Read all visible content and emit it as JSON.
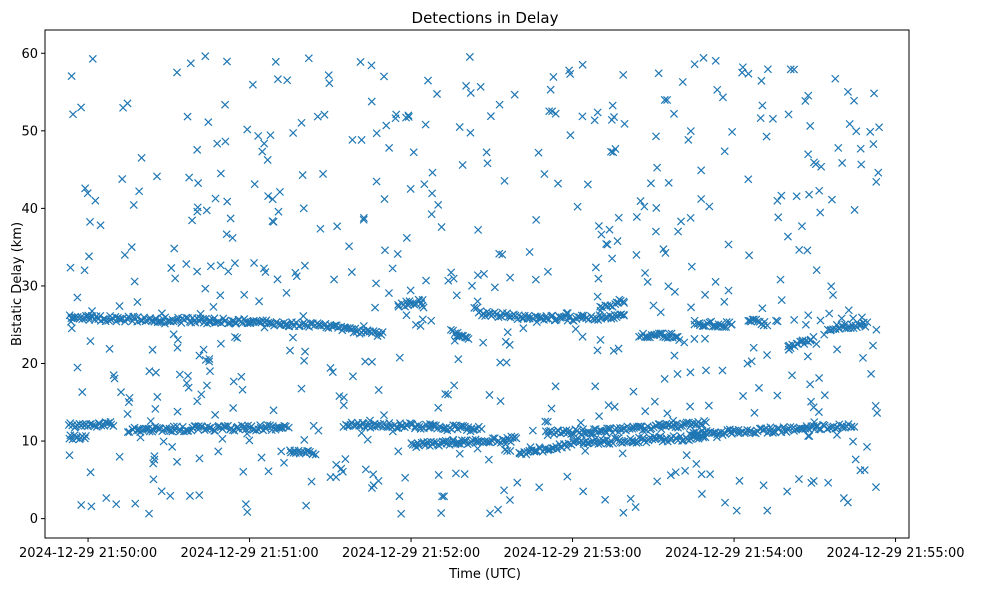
{
  "chart_data": {
    "type": "scatter",
    "title": "Detections in Delay",
    "xlabel": "Time (UTC)",
    "ylabel": "Bistatic Delay (km)",
    "x_ticks": [
      {
        "time": "21:50:00",
        "label": "2024-12-29 21:50:00"
      },
      {
        "time": "21:51:00",
        "label": "2024-12-29 21:51:00"
      },
      {
        "time": "21:52:00",
        "label": "2024-12-29 21:52:00"
      },
      {
        "time": "21:53:00",
        "label": "2024-12-29 21:53:00"
      },
      {
        "time": "21:54:00",
        "label": "2024-12-29 21:54:00"
      },
      {
        "time": "21:55:00",
        "label": "2024-12-29 21:55:00"
      }
    ],
    "xlim": [
      "21:49:44",
      "21:55:05"
    ],
    "y_ticks": [
      "0",
      "10",
      "20",
      "30",
      "40",
      "50",
      "60"
    ],
    "ylim": [
      -2.5,
      63
    ],
    "marker": "x",
    "color": "#1f77b4",
    "grid": false,
    "tracks": [
      {
        "points": [
          [
            "21:49:53",
            25.9
          ],
          [
            "21:50:30",
            25.6
          ],
          [
            "21:51:00",
            25.4
          ],
          [
            "21:51:30",
            24.8
          ],
          [
            "21:51:50",
            23.7
          ]
        ]
      },
      {
        "points": [
          [
            "21:51:55",
            27.5
          ],
          [
            "21:52:05",
            28.2
          ]
        ]
      },
      {
        "points": [
          [
            "21:52:15",
            24.0
          ],
          [
            "21:52:22",
            23.3
          ]
        ]
      },
      {
        "points": [
          [
            "21:52:25",
            26.5
          ],
          [
            "21:52:40",
            26.0
          ],
          [
            "21:53:00",
            25.8
          ],
          [
            "21:53:20",
            26.1
          ]
        ]
      },
      {
        "points": [
          [
            "21:53:10",
            27.0
          ],
          [
            "21:53:20",
            28.2
          ]
        ]
      },
      {
        "points": [
          [
            "21:53:25",
            23.5
          ],
          [
            "21:53:40",
            23.7
          ]
        ]
      },
      {
        "points": [
          [
            "21:53:45",
            25.2
          ],
          [
            "21:54:00",
            25.0
          ]
        ]
      },
      {
        "points": [
          [
            "21:54:05",
            25.6
          ],
          [
            "21:54:12",
            25.0
          ]
        ]
      },
      {
        "points": [
          [
            "21:54:20",
            22.0
          ],
          [
            "21:54:30",
            23.2
          ]
        ]
      },
      {
        "points": [
          [
            "21:54:35",
            24.6
          ],
          [
            "21:54:50",
            25.1
          ]
        ]
      },
      {
        "points": [
          [
            "21:49:53",
            12.0
          ],
          [
            "21:50:10",
            12.2
          ]
        ]
      },
      {
        "points": [
          [
            "21:50:15",
            11.5
          ],
          [
            "21:50:45",
            11.6
          ],
          [
            "21:51:15",
            11.8
          ]
        ]
      },
      {
        "points": [
          [
            "21:51:15",
            8.5
          ],
          [
            "21:51:25",
            8.4
          ]
        ]
      },
      {
        "points": [
          [
            "21:51:35",
            12.1
          ],
          [
            "21:52:00",
            12.0
          ],
          [
            "21:52:25",
            11.5
          ]
        ]
      },
      {
        "points": [
          [
            "21:52:00",
            9.5
          ],
          [
            "21:52:20",
            9.8
          ],
          [
            "21:52:40",
            10.3
          ]
        ]
      },
      {
        "points": [
          [
            "21:52:40",
            8.5
          ],
          [
            "21:53:00",
            9.5
          ]
        ]
      },
      {
        "points": [
          [
            "21:52:50",
            11.0
          ],
          [
            "21:53:10",
            11.3
          ],
          [
            "21:53:30",
            11.8
          ],
          [
            "21:53:50",
            12.3
          ]
        ]
      },
      {
        "points": [
          [
            "21:53:00",
            9.8
          ],
          [
            "21:53:30",
            10.2
          ],
          [
            "21:53:50",
            10.5
          ]
        ]
      },
      {
        "points": [
          [
            "21:53:45",
            11.0
          ],
          [
            "21:54:10",
            11.3
          ],
          [
            "21:54:25",
            11.6
          ],
          [
            "21:54:45",
            12.1
          ]
        ]
      },
      {
        "points": [
          [
            "21:49:53",
            10.5
          ],
          [
            "21:50:00",
            10.3
          ]
        ]
      }
    ],
    "noise": {
      "count": 620,
      "x_range": [
        "21:49:53",
        "21:54:54"
      ],
      "y_range": [
        0.5,
        60
      ]
    }
  }
}
